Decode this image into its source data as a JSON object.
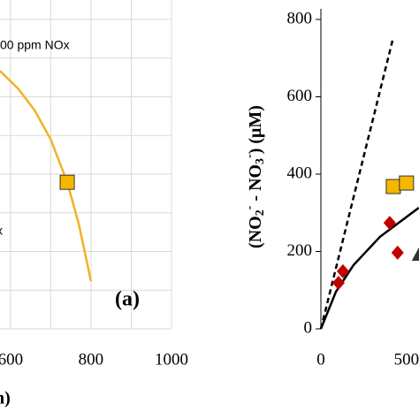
{
  "chart_data": [
    {
      "type": "scatter",
      "xlim": [
        574,
        1000
      ],
      "ylim": [
        0,
        800
      ],
      "xticks": [
        600,
        800,
        1000
      ],
      "xgrid": [
        600,
        700,
        800,
        900,
        1000
      ],
      "ygrid": [
        0,
        100,
        200,
        300,
        400,
        500,
        600,
        700,
        800
      ],
      "grid": true,
      "annotations": [
        "00 ppm NOx",
        "x",
        "(a)",
        "n)"
      ],
      "series": [
        {
          "marker": "line",
          "color": "#f0b323",
          "x": [
            574,
            620,
            660,
            700,
            741,
            770,
            800
          ],
          "values": [
            667,
            620,
            565,
            490,
            379,
            270,
            123
          ]
        },
        {
          "marker": "square",
          "color": "#f5b800",
          "x": [
            741
          ],
          "values": [
            379
          ]
        }
      ]
    },
    {
      "type": "scatter",
      "xlim": [
        0,
        573
      ],
      "ylim": [
        0,
        800
      ],
      "xticks": [
        0,
        500
      ],
      "yticks": [
        0,
        200,
        400,
        600,
        800
      ],
      "grid": false,
      "y_label": [
        "(NO",
        "2",
        "-",
        " - NO",
        "3",
        "-",
        ") (μM)"
      ],
      "series": [
        {
          "marker": "dashed",
          "color": "#000000",
          "x": [
            0,
            423
          ],
          "values": [
            0,
            754
          ]
        },
        {
          "marker": "line",
          "color": "#000000",
          "x": [
            0,
            88,
            191,
            345,
            572
          ],
          "values": [
            0,
            96,
            165,
            238,
            313
          ]
        },
        {
          "marker": "square",
          "color": "#f5b800",
          "x": [
            423,
            500
          ],
          "values": [
            368,
            377
          ]
        },
        {
          "marker": "diamond",
          "color": "#c00000",
          "x": [
            103,
            129,
            402,
            448
          ],
          "values": [
            119,
            149,
            274,
            197
          ]
        },
        {
          "marker": "triangle",
          "color": "#333333",
          "x": [
            572
          ],
          "values": [
            192
          ]
        }
      ]
    }
  ]
}
